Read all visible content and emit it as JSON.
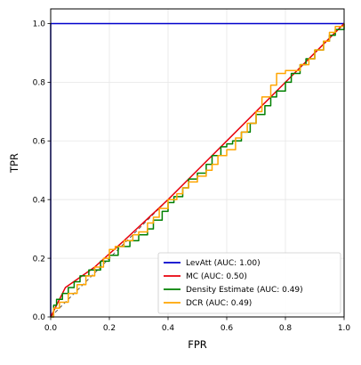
{
  "chart_data": {
    "type": "line",
    "title": "",
    "xlabel": "FPR",
    "ylabel": "TPR",
    "xlim": [
      0.0,
      1.0
    ],
    "ylim": [
      0.0,
      1.05
    ],
    "xticks": [
      "0.0",
      "0.2",
      "0.4",
      "0.6",
      "0.8",
      "1.0"
    ],
    "yticks": [
      "0.0",
      "0.2",
      "0.4",
      "0.6",
      "0.8",
      "1.0"
    ],
    "grid": true,
    "legend_position": "lower-right",
    "reference_line": {
      "x": [
        0,
        1
      ],
      "y": [
        0,
        1
      ],
      "color": "#555555",
      "style": "dashed"
    },
    "series": [
      {
        "name": "LevAtt (AUC: 1.00)",
        "color": "#0000cc",
        "x": [
          0.0,
          0.0,
          1.0
        ],
        "y": [
          0.0,
          1.0,
          1.0
        ]
      },
      {
        "name": "MC (AUC: 0.50)",
        "color": "#e8000b",
        "x": [
          0.0,
          0.01,
          0.05,
          0.15,
          0.25,
          0.4,
          0.5,
          0.6,
          0.7,
          0.8,
          0.9,
          1.0
        ],
        "y": [
          0.0,
          0.02,
          0.1,
          0.17,
          0.26,
          0.4,
          0.5,
          0.6,
          0.7,
          0.8,
          0.9,
          1.0
        ]
      },
      {
        "name": "Density Estimate (AUC: 0.49)",
        "color": "#008000",
        "x": [
          0.0,
          0.01,
          0.02,
          0.04,
          0.06,
          0.08,
          0.1,
          0.13,
          0.17,
          0.2,
          0.23,
          0.27,
          0.3,
          0.33,
          0.35,
          0.38,
          0.4,
          0.42,
          0.45,
          0.47,
          0.5,
          0.53,
          0.55,
          0.58,
          0.6,
          0.62,
          0.65,
          0.68,
          0.7,
          0.73,
          0.75,
          0.77,
          0.8,
          0.82,
          0.85,
          0.87,
          0.9,
          0.93,
          0.95,
          0.97,
          1.0
        ],
        "y": [
          0.0,
          0.04,
          0.06,
          0.08,
          0.1,
          0.12,
          0.14,
          0.16,
          0.19,
          0.21,
          0.24,
          0.26,
          0.28,
          0.3,
          0.33,
          0.36,
          0.39,
          0.41,
          0.44,
          0.47,
          0.49,
          0.52,
          0.55,
          0.58,
          0.59,
          0.6,
          0.63,
          0.66,
          0.69,
          0.72,
          0.75,
          0.77,
          0.8,
          0.83,
          0.86,
          0.88,
          0.91,
          0.94,
          0.96,
          0.98,
          1.0
        ]
      },
      {
        "name": "DCR (AUC: 0.49)",
        "color": "#ffa500",
        "x": [
          0.0,
          0.01,
          0.03,
          0.06,
          0.09,
          0.12,
          0.15,
          0.18,
          0.2,
          0.22,
          0.25,
          0.28,
          0.3,
          0.33,
          0.35,
          0.37,
          0.4,
          0.43,
          0.45,
          0.47,
          0.5,
          0.53,
          0.55,
          0.57,
          0.6,
          0.63,
          0.65,
          0.67,
          0.7,
          0.72,
          0.75,
          0.77,
          0.8,
          0.83,
          0.85,
          0.88,
          0.9,
          0.93,
          0.95,
          0.97,
          1.0
        ],
        "y": [
          0.0,
          0.03,
          0.05,
          0.08,
          0.11,
          0.14,
          0.17,
          0.2,
          0.23,
          0.24,
          0.26,
          0.28,
          0.29,
          0.32,
          0.34,
          0.37,
          0.4,
          0.42,
          0.44,
          0.46,
          0.48,
          0.5,
          0.52,
          0.55,
          0.57,
          0.61,
          0.63,
          0.66,
          0.7,
          0.75,
          0.79,
          0.83,
          0.84,
          0.84,
          0.86,
          0.88,
          0.91,
          0.94,
          0.97,
          0.99,
          1.0
        ]
      }
    ]
  }
}
